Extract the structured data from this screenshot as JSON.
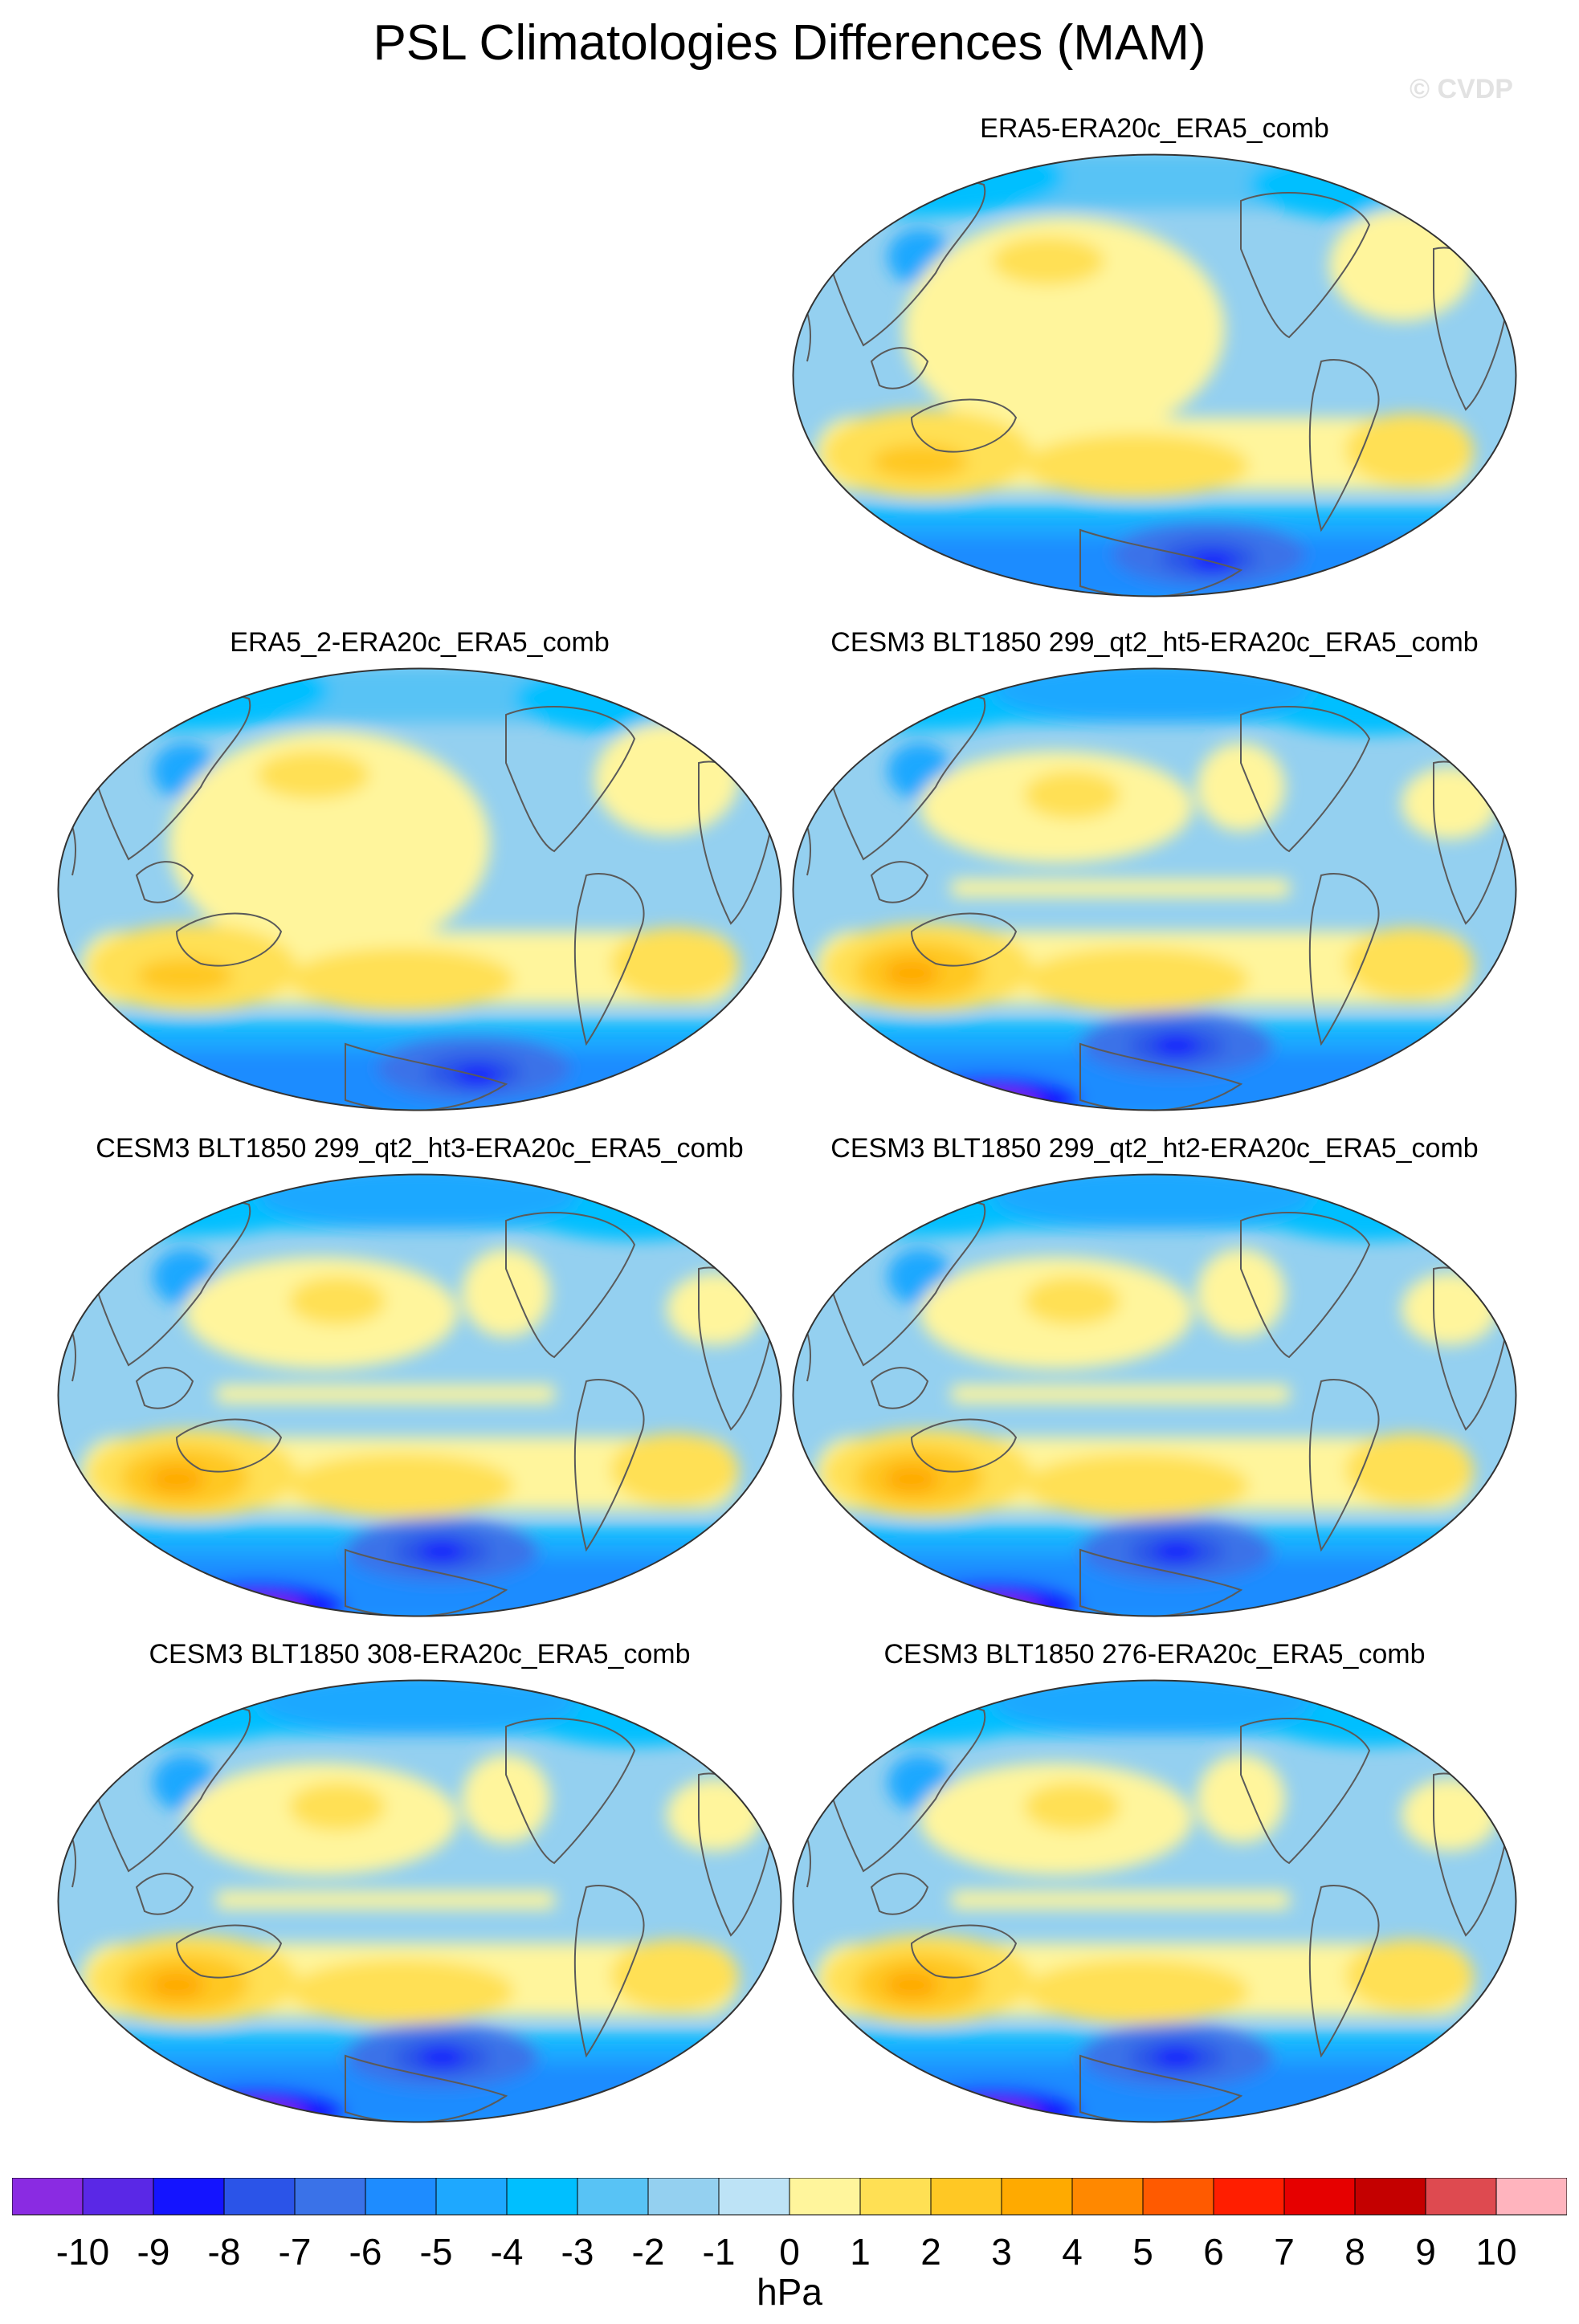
{
  "title": "PSL Climatologies Differences (MAM)",
  "watermark": "© CVDP",
  "units": "hPa",
  "colorbar": {
    "labels": [
      "-10",
      "-9",
      "-8",
      "-7",
      "-6",
      "-5",
      "-4",
      "-3",
      "-2",
      "-1",
      "0",
      "1",
      "2",
      "3",
      "4",
      "5",
      "6",
      "7",
      "8",
      "9",
      "10"
    ],
    "colors": [
      "#8a2be2",
      "#5a28e6",
      "#1414ff",
      "#2b54e8",
      "#3a72e8",
      "#1e8cff",
      "#1ea8ff",
      "#00bfff",
      "#58c3f5",
      "#94d0f0",
      "#bde3f6",
      "#fff59c",
      "#ffe054",
      "#ffc824",
      "#ffaa00",
      "#ff8800",
      "#ff5a00",
      "#ff1e00",
      "#e60000",
      "#c40000",
      "#de4a50",
      "#ffb4be"
    ]
  },
  "panels": [
    {
      "title": "ERA5-ERA20c_ERA5_comb"
    },
    {
      "title": "ERA5_2-ERA20c_ERA5_comb"
    },
    {
      "title": "CESM3 BLT1850 299_qt2_ht5-ERA20c_ERA5_comb"
    },
    {
      "title": "CESM3 BLT1850 299_qt2_ht3-ERA20c_ERA5_comb"
    },
    {
      "title": "CESM3 BLT1850 299_qt2_ht2-ERA20c_ERA5_comb"
    },
    {
      "title": "CESM3 BLT1850 308-ERA20c_ERA5_comb"
    },
    {
      "title": "CESM3 BLT1850 276-ERA20c_ERA5_comb"
    }
  ]
}
